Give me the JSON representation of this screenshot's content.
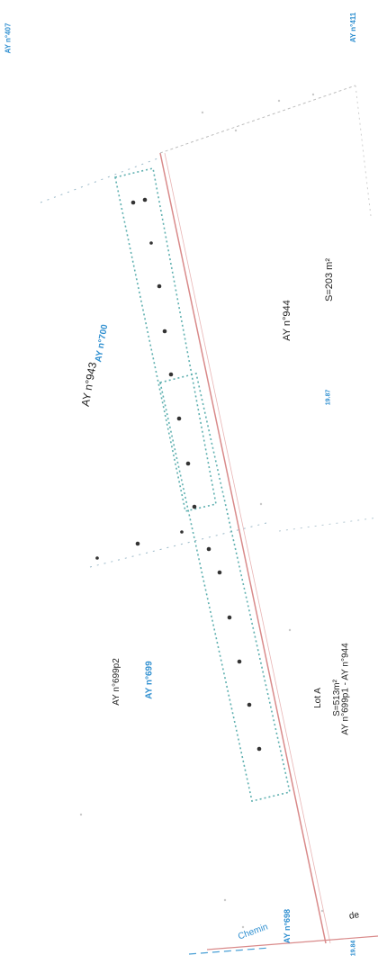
{
  "map": {
    "parcels": {
      "ay407": "AY n°407",
      "ay411": "AY n°411",
      "ay943": "AY n°943",
      "ay700": "AY n°700",
      "ay944": "AY n°944",
      "surface_944": "S=203 m²",
      "ay699p2": "AY n°699p2",
      "ay699": "AY n°699",
      "ay698": "AY n°698",
      "lot_a": "Lot A",
      "lot_a_surface": "S=513m²",
      "lot_a_refs": "AY n°699p1 - AY n°944"
    },
    "road": {
      "word1": "Chemin",
      "word2": "de"
    },
    "small_marks": {
      "mark_1987": "19.87",
      "mark_1984": "19.84"
    },
    "colors": {
      "parcel_line": "#d98a8a",
      "strip_outline": "#5fb0b0",
      "blue_text": "#2f8fd0",
      "black_text": "#222222",
      "points": "#333333"
    }
  }
}
